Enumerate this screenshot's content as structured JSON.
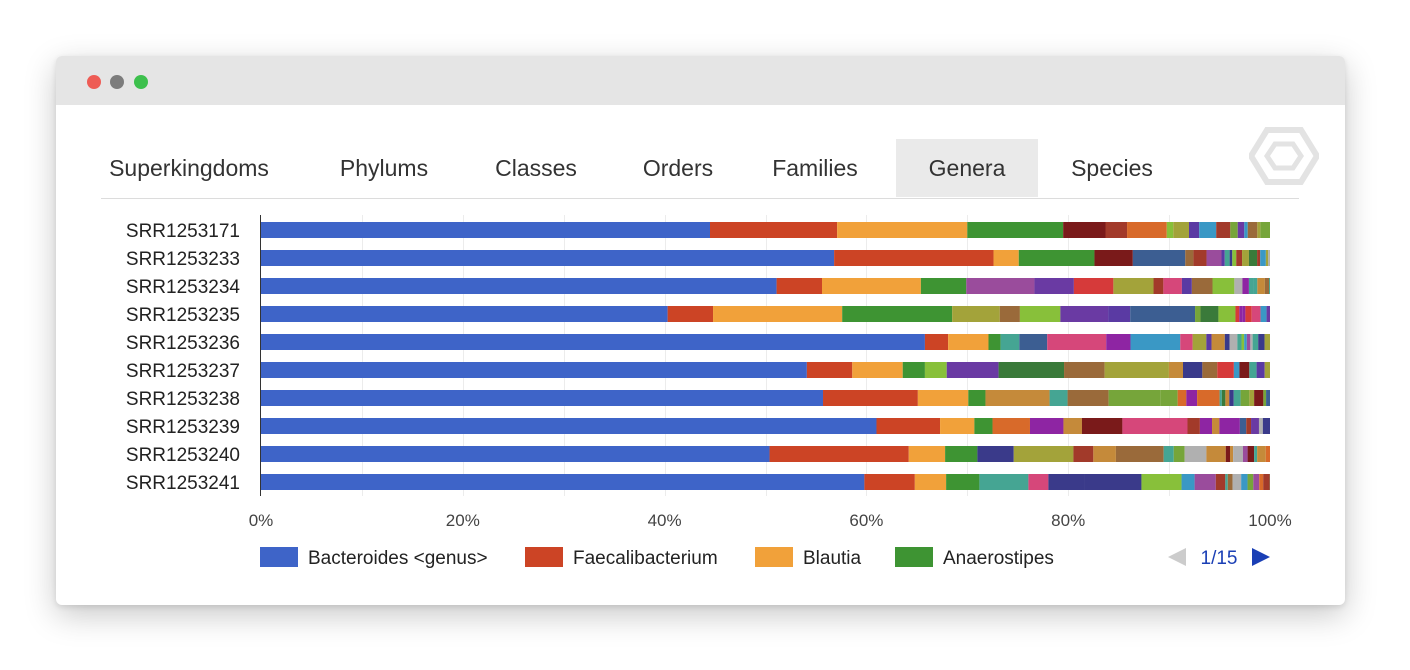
{
  "tabs": [
    {
      "label": "Superkingdoms",
      "active": false
    },
    {
      "label": "Phylums",
      "active": false
    },
    {
      "label": "Classes",
      "active": false
    },
    {
      "label": "Orders",
      "active": false
    },
    {
      "label": "Families",
      "active": false
    },
    {
      "label": "Genera",
      "active": true
    },
    {
      "label": "Species",
      "active": false
    }
  ],
  "pager": {
    "text": "1/15",
    "prev_icon": "triangle-left-icon",
    "next_icon": "triangle-right-icon"
  },
  "colors": {
    "bacteroides": "#3e64c8",
    "faecalibacterium": "#cc4425",
    "blautia": "#f1a13a",
    "anaerostipes": "#3e9433",
    "tail_palette": [
      "#8e25a3",
      "#3a98c5",
      "#d6477a",
      "#76a53a",
      "#a23a2a",
      "#3c5e92",
      "#9a4c9c",
      "#45a593",
      "#a3a33a",
      "#6a3aa3",
      "#d86a2a",
      "#7a1a1a",
      "#b0b0b0",
      "#3a7a3a",
      "#c58a3a",
      "#5a3aa3",
      "#d63a3a",
      "#88c03a",
      "#3a3a8a",
      "#9a6a3a"
    ],
    "pager_active": "#1a3fb5",
    "pager_inactive": "#cccccc"
  },
  "chart_data": {
    "type": "bar",
    "orientation": "horizontal",
    "stacked": true,
    "percent": true,
    "categories": [
      "SRR1253171",
      "SRR1253233",
      "SRR1253234",
      "SRR1253235",
      "SRR1253236",
      "SRR1253237",
      "SRR1253238",
      "SRR1253239",
      "SRR1253240",
      "SRR1253241"
    ],
    "series": [
      {
        "name": "Bacteroides <genus>",
        "color": "#3e64c8",
        "values": [
          44.5,
          56.8,
          51.1,
          40.3,
          65.8,
          54.1,
          55.7,
          61.0,
          50.4,
          59.8
        ]
      },
      {
        "name": "Faecalibacterium",
        "color": "#cc4425",
        "values": [
          12.6,
          15.8,
          4.5,
          4.5,
          2.3,
          4.5,
          9.4,
          6.3,
          13.8,
          5.0
        ]
      },
      {
        "name": "Blautia",
        "color": "#f1a13a",
        "values": [
          12.9,
          2.5,
          9.8,
          12.8,
          4.0,
          5.0,
          5.0,
          3.4,
          3.6,
          3.1
        ]
      },
      {
        "name": "Anaerostipes",
        "color": "#3e9433",
        "values": [
          9.5,
          7.5,
          4.5,
          10.9,
          1.2,
          2.2,
          1.7,
          1.8,
          3.2,
          3.3
        ]
      }
    ],
    "other_remaining": true,
    "xlim": [
      0,
      100
    ],
    "x_ticks": [
      "0%",
      "20%",
      "40%",
      "60%",
      "80%",
      "100%"
    ],
    "grid": true,
    "legend": {
      "position": "bottom",
      "entries": [
        "Bacteroides <genus>",
        "Faecalibacterium",
        "Blautia",
        "Anaerostipes"
      ],
      "page": "1/15"
    }
  }
}
